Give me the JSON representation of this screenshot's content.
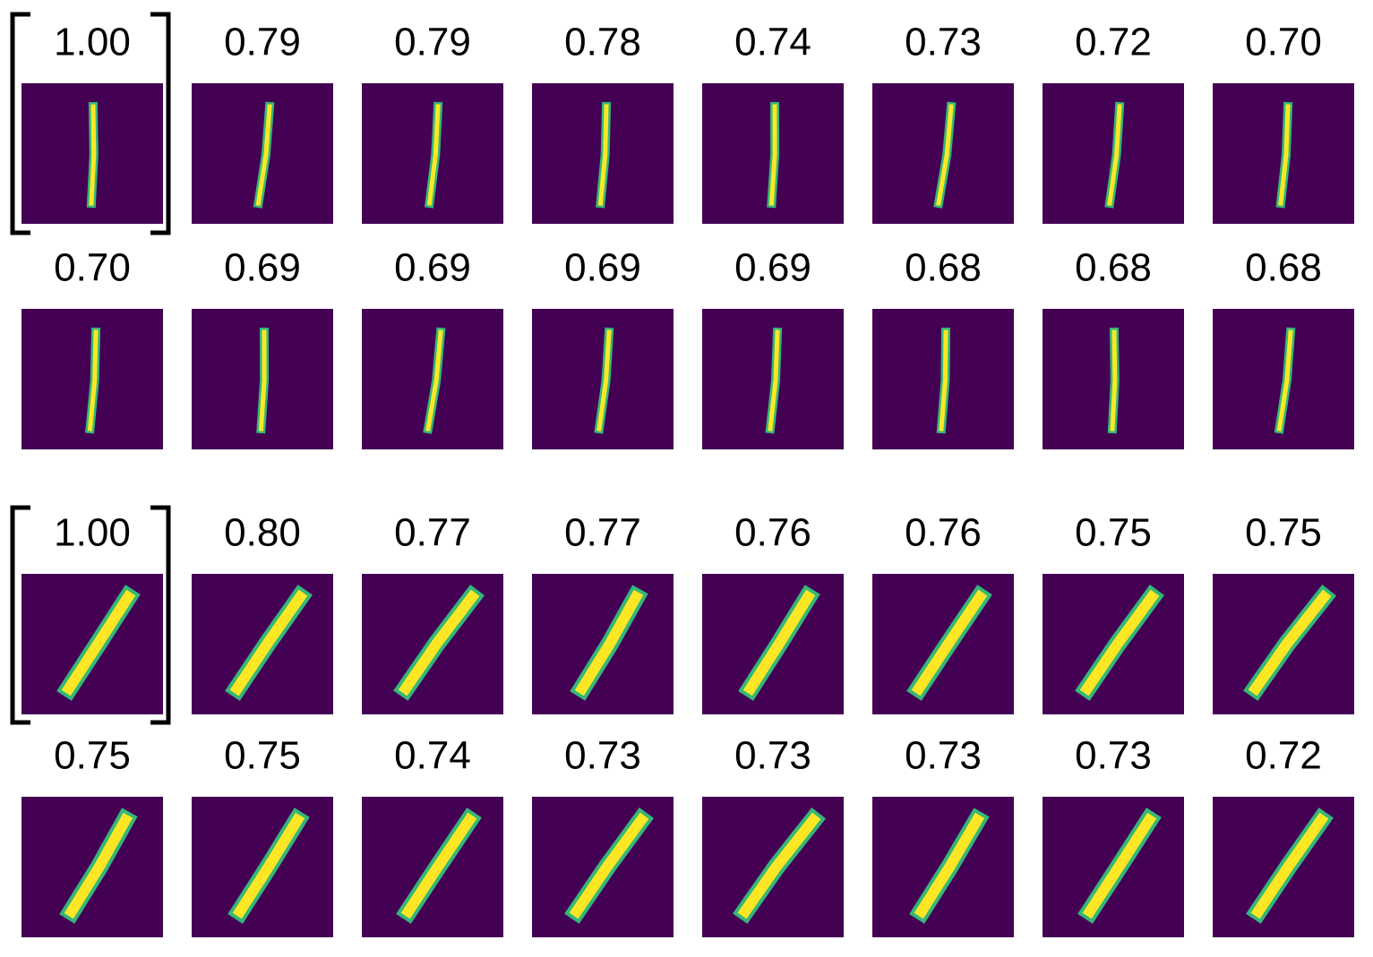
{
  "groups": [
    {
      "rows": [
        [
          "1.00",
          "0.79",
          "0.79",
          "0.78",
          "0.74",
          "0.73",
          "0.72",
          "0.70"
        ],
        [
          "0.70",
          "0.69",
          "0.69",
          "0.69",
          "0.69",
          "0.68",
          "0.68",
          "0.68"
        ]
      ]
    },
    {
      "rows": [
        [
          "1.00",
          "0.80",
          "0.77",
          "0.77",
          "0.76",
          "0.76",
          "0.75",
          "0.75"
        ],
        [
          "0.75",
          "0.75",
          "0.74",
          "0.73",
          "0.73",
          "0.73",
          "0.73",
          "0.72"
        ]
      ]
    }
  ]
}
